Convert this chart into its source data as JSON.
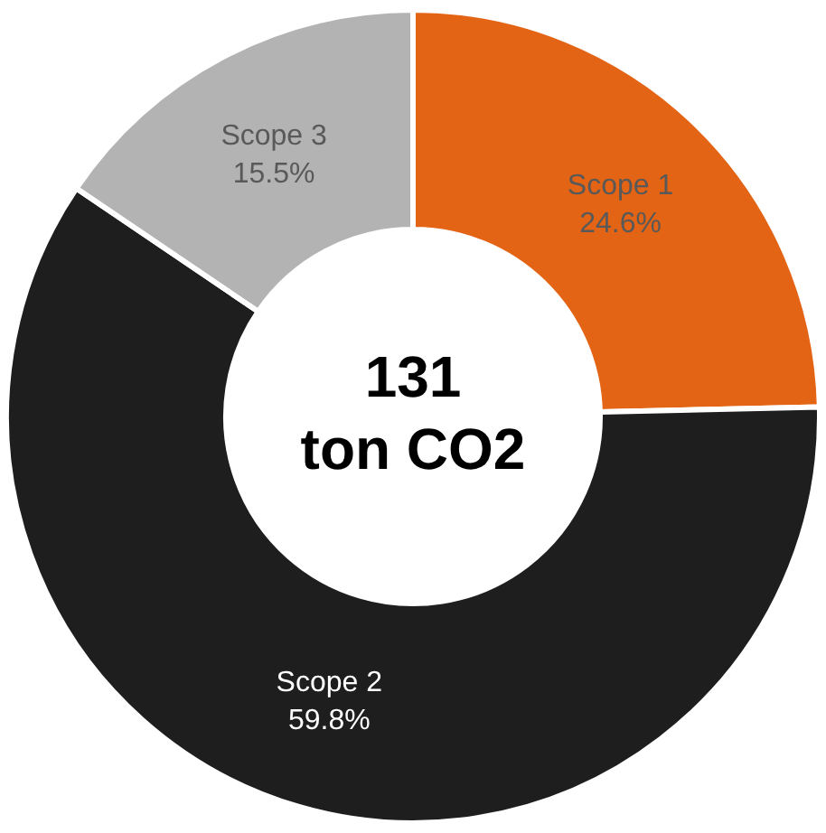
{
  "chart_data": {
    "type": "donut",
    "categories": [
      "Scope 1",
      "Scope 2",
      "Scope 3"
    ],
    "values": [
      24.6,
      59.8,
      15.5
    ],
    "value_labels": [
      "24.6%",
      "59.8%",
      "15.5%"
    ],
    "colors": [
      "#e36414",
      "#1e1e1e",
      "#b3b3b3"
    ],
    "data_labels": true,
    "legend": false,
    "annotations": [
      "131",
      "ton CO2"
    ]
  }
}
